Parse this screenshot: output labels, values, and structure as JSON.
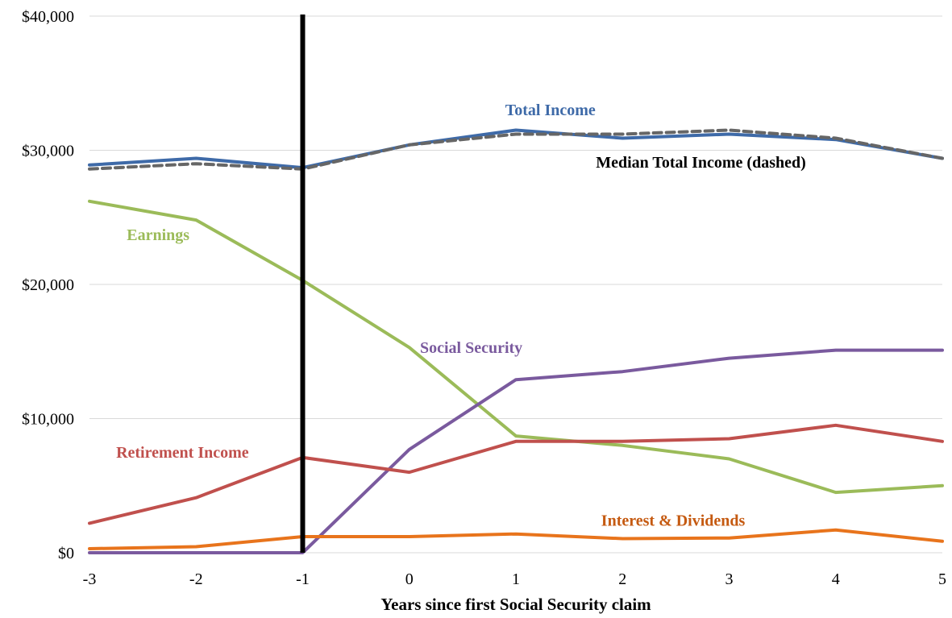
{
  "chart_data": {
    "type": "line",
    "title": "",
    "xlabel": "Years since first Social Security claim",
    "ylabel": "",
    "x": [
      -3,
      -2,
      -1,
      0,
      1,
      2,
      3,
      4,
      5
    ],
    "x_ticks": [
      "-3",
      "-2",
      "-1",
      "0",
      "1",
      "2",
      "3",
      "4",
      "5"
    ],
    "y_ticks": [
      "$0",
      "$10,000",
      "$20,000",
      "$30,000",
      "$40,000"
    ],
    "y_tick_values": [
      0,
      10000,
      20000,
      30000,
      40000
    ],
    "ylim": [
      0,
      40000
    ],
    "xlim": [
      -3,
      5
    ],
    "grid": "horizontal",
    "reference_line_x": -1,
    "series": [
      {
        "name": "Total Income",
        "color": "#3e6aa8",
        "dashed": false,
        "label_at": [
          0.9,
          32600
        ],
        "values": [
          28900,
          29400,
          28700,
          30400,
          31500,
          30900,
          31200,
          30800,
          29400
        ]
      },
      {
        "name": "Median Total Income (dashed)",
        "color": "#666666",
        "text_color": "#000000",
        "dashed": true,
        "label_at": [
          1.75,
          28700
        ],
        "values": [
          28600,
          29000,
          28600,
          30400,
          31200,
          31200,
          31500,
          30900,
          29400
        ]
      },
      {
        "name": "Earnings",
        "color": "#9bbb59",
        "dashed": false,
        "label_at": [
          -2.65,
          23300
        ],
        "values": [
          26200,
          24800,
          20300,
          15300,
          8700,
          8000,
          7000,
          4500,
          5000
        ]
      },
      {
        "name": "Social Security",
        "color": "#7a5a9e",
        "dashed": false,
        "label_at": [
          0.1,
          14900
        ],
        "values": [
          0,
          0,
          0,
          7700,
          12900,
          13500,
          14500,
          15100,
          15100
        ]
      },
      {
        "name": "Retirement Income",
        "color": "#c0504d",
        "dashed": false,
        "label_at": [
          -2.75,
          7100
        ],
        "values": [
          2200,
          4100,
          7100,
          6000,
          8300,
          8300,
          8500,
          9500,
          8300
        ]
      },
      {
        "name": "Interest & Dividends",
        "color": "#e8741c",
        "text_color": "#c55a11",
        "dashed": false,
        "label_at": [
          1.8,
          2000
        ],
        "values": [
          300,
          450,
          1200,
          1200,
          1400,
          1050,
          1100,
          1700,
          850
        ]
      }
    ]
  }
}
